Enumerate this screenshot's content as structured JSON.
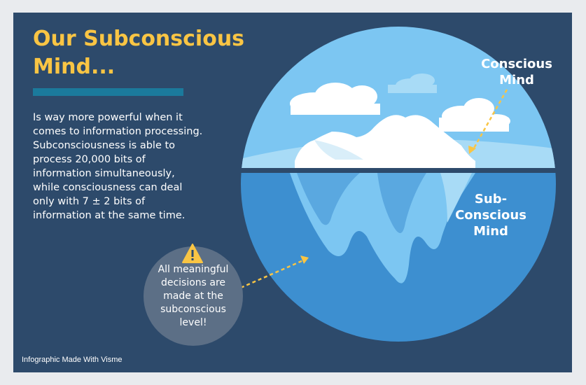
{
  "title": "Our Subconscious Mind...",
  "description": "Is way more powerful when it comes to information processing. Subconsciousness is able to process 20,000 bits of information simultaneously, while consciousness can deal only with 7 ± 2 bits of information at the same time.",
  "labels": {
    "conscious": "Conscious Mind",
    "subconscious": "Sub-Conscious Mind"
  },
  "callout": "All meaningful decisions are made at the subconscious level!",
  "footer": "Infographic Made With Visme",
  "icons": {
    "warning": "warning-icon"
  },
  "colors": {
    "background": "#2d4a6b",
    "title": "#f9c544",
    "accent_bar": "#1b7a9c",
    "sky": "#7cc6f2",
    "water": "#3d8fd0",
    "arrow": "#f9c544"
  }
}
